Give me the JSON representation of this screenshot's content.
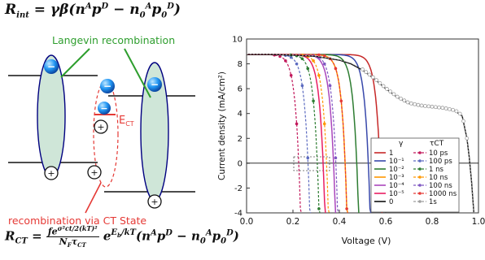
{
  "diagram": {
    "langevin_label": "Langevin recombination",
    "ct_label": "recombination via CT State",
    "ect_label": "E",
    "ect_sub": "CT",
    "minus": "−",
    "plus": "+"
  },
  "equations": {
    "top": "R_int = γβ(nᴬpᴰ − n₀ᴬp₀ᴰ)",
    "bottom": "R_CT = f e^(σ²ct/2(kT)²)/(N_F τ_CT) · e^(E_b/kT)(nᴬpᴰ − n₀ᴬp₀ᴰ)"
  },
  "chart_data": {
    "type": "line",
    "xlabel": "Voltage (V)",
    "ylabel": "Current density (mA/cm²)",
    "xlim": [
      0.0,
      1.0
    ],
    "ylim": [
      -4,
      10
    ],
    "xticks": [
      "0.0",
      "0.2",
      "0.4",
      "0.6",
      "0.8",
      "1.0"
    ],
    "yticks": [
      "-4",
      "-2",
      "0",
      "2",
      "4",
      "6",
      "8",
      "10"
    ],
    "grid": false,
    "legend": {
      "placement": "bottom-right",
      "gamma_header": "γ",
      "tau_header": "τCT",
      "gamma_entries": [
        "1",
        "10⁻¹",
        "10⁻²",
        "10⁻³",
        "10⁻⁴",
        "10⁻⁵",
        "0"
      ],
      "tau_entries": [
        "10 ps",
        "100 ps",
        "1 ns",
        "10 ns",
        "100 ns",
        "1000 ns",
        "1s"
      ]
    },
    "series_solid": [
      {
        "gamma": "1",
        "color": "#c62828",
        "voc": 0.575
      },
      {
        "gamma": "10⁻¹",
        "color": "#3949ab",
        "voc": 0.525
      },
      {
        "gamma": "10⁻²",
        "color": "#2e7d32",
        "voc": 0.475
      },
      {
        "gamma": "10⁻³",
        "color": "#ff9800",
        "voc": 0.425
      },
      {
        "gamma": "10⁻⁴",
        "color": "#ab47bc",
        "voc": 0.375
      },
      {
        "gamma": "10⁻⁵",
        "color": "#e91e63",
        "voc": 0.33
      }
    ],
    "series_dashed": [
      {
        "tau": "10 ps",
        "color": "#c2185b",
        "voc": 0.225
      },
      {
        "tau": "100 ps",
        "color": "#5c6bc0",
        "voc": 0.265
      },
      {
        "tau": "1 ns",
        "color": "#2e7d32",
        "voc": 0.305
      },
      {
        "tau": "10 ns",
        "color": "#ff9800",
        "voc": 0.345
      },
      {
        "tau": "100 ns",
        "color": "#7e57c2",
        "voc": 0.385
      },
      {
        "tau": "1000 ns",
        "color": "#e53935",
        "voc": 0.425
      }
    ],
    "series_gamma0": {
      "gamma": "0",
      "color": "#111111",
      "x": [
        0.0,
        0.1,
        0.2,
        0.3,
        0.4,
        0.45,
        0.5,
        0.55,
        0.6,
        0.65,
        0.7,
        0.75,
        0.8,
        0.85,
        0.9,
        0.93,
        0.95,
        0.96,
        0.97,
        0.98
      ],
      "y": [
        8.75,
        8.75,
        8.7,
        8.6,
        8.3,
        8.0,
        7.5,
        6.8,
        6.0,
        5.3,
        4.8,
        4.6,
        4.5,
        4.4,
        4.2,
        3.8,
        2.0,
        0.5,
        -1.5,
        -4
      ]
    },
    "series_1s": {
      "tau": "1s",
      "color": "#9e9e9e",
      "x": [
        0.0,
        0.1,
        0.2,
        0.3,
        0.4,
        0.45,
        0.5,
        0.55,
        0.6,
        0.65,
        0.7,
        0.75,
        0.8,
        0.85,
        0.9,
        0.93,
        0.95,
        0.96,
        0.97,
        0.98
      ],
      "y": [
        8.78,
        8.78,
        8.72,
        8.62,
        8.33,
        8.05,
        7.55,
        6.85,
        6.05,
        5.35,
        4.85,
        4.65,
        4.55,
        4.45,
        4.25,
        3.85,
        2.0,
        0.5,
        -1.5,
        -4
      ]
    },
    "jsc": 8.75
  }
}
